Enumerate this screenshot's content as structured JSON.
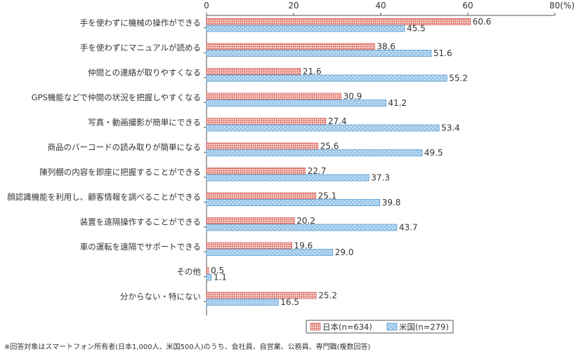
{
  "chart_data": {
    "type": "bar",
    "orientation": "horizontal",
    "axis": {
      "ticks": [
        "0",
        "20",
        "40",
        "60",
        "80(%)"
      ],
      "tick_values": [
        0,
        20,
        40,
        60,
        80
      ],
      "range": [
        0,
        80
      ]
    },
    "categories": [
      "手を使わずに機械の操作ができる",
      "手を使わずにマニュアルが読める",
      "仲間との連絡が取りやすくなる",
      "GPS機能などで仲間の状況を把握しやすくなる",
      "写真・動画撮影が簡単にできる",
      "商品のバーコードの読み取りが簡単になる",
      "陳列棚の内容を即座に把握することができる",
      "顔認識機能を利用し、顧客情報を調べることができる",
      "装置を遠隔操作することができる",
      "車の運転を遠隔でサポートできる",
      "その他",
      "分からない・特にない"
    ],
    "series": [
      {
        "name": "日本(n=634)",
        "color": "#e8837a",
        "values": [
          60.6,
          38.6,
          21.6,
          30.9,
          27.4,
          25.6,
          22.7,
          25.1,
          20.2,
          19.6,
          0.5,
          25.2
        ],
        "labels": [
          "60.6",
          "38.6",
          "21.6",
          "30.9",
          "27.4",
          "25.6",
          "22.7",
          "25.1",
          "20.2",
          "19.6",
          "0.5",
          "25.2"
        ]
      },
      {
        "name": "米国(n=279)",
        "color": "#9cc8ea",
        "values": [
          45.5,
          51.6,
          55.2,
          41.2,
          53.4,
          49.5,
          37.3,
          39.8,
          43.7,
          29.0,
          1.1,
          16.5
        ],
        "labels": [
          "45.5",
          "51.6",
          "55.2",
          "41.2",
          "53.4",
          "49.5",
          "37.3",
          "39.8",
          "43.7",
          "29.0",
          "1.1",
          "16.5"
        ]
      }
    ],
    "legend_position": "bottom-right",
    "grid": false
  },
  "footnote": "※回答対象はスマートフォン所有者(日本1,000人、米国500人)のうち、会社員、自営業、公務員、専門職(複数回答)"
}
